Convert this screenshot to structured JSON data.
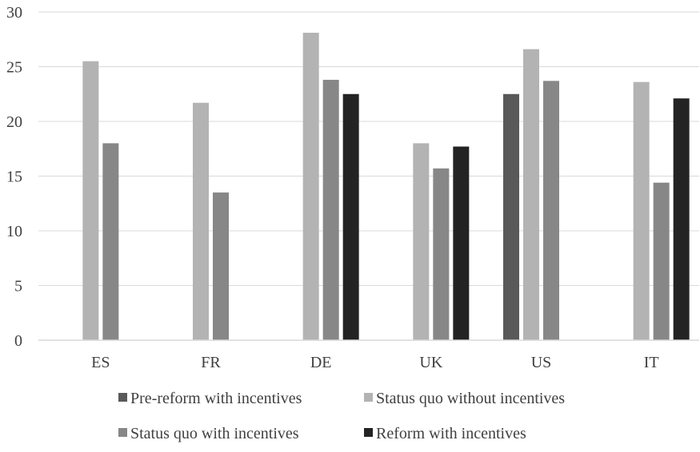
{
  "chart_data": {
    "type": "bar",
    "title": "",
    "xlabel": "",
    "ylabel": "",
    "ylim": [
      0,
      30
    ],
    "yticks": [
      0,
      5,
      10,
      15,
      20,
      25,
      30
    ],
    "grid": true,
    "legend_position": "bottom",
    "categories": [
      "ES",
      "FR",
      "DE",
      "UK",
      "US",
      "IT"
    ],
    "series": [
      {
        "name": "Pre-reform with incentives",
        "color": "#595959",
        "values": [
          null,
          null,
          null,
          null,
          22.5,
          null
        ]
      },
      {
        "name": "Status quo without incentives",
        "color": "#b3b3b3",
        "values": [
          25.5,
          21.7,
          28.1,
          18.0,
          26.6,
          23.6
        ]
      },
      {
        "name": "Status quo with incentives",
        "color": "#878787",
        "values": [
          18.0,
          13.5,
          23.8,
          15.7,
          23.7,
          14.4
        ]
      },
      {
        "name": "Reform with incentives",
        "color": "#232323",
        "values": [
          null,
          null,
          22.5,
          17.7,
          null,
          22.1
        ]
      }
    ]
  }
}
